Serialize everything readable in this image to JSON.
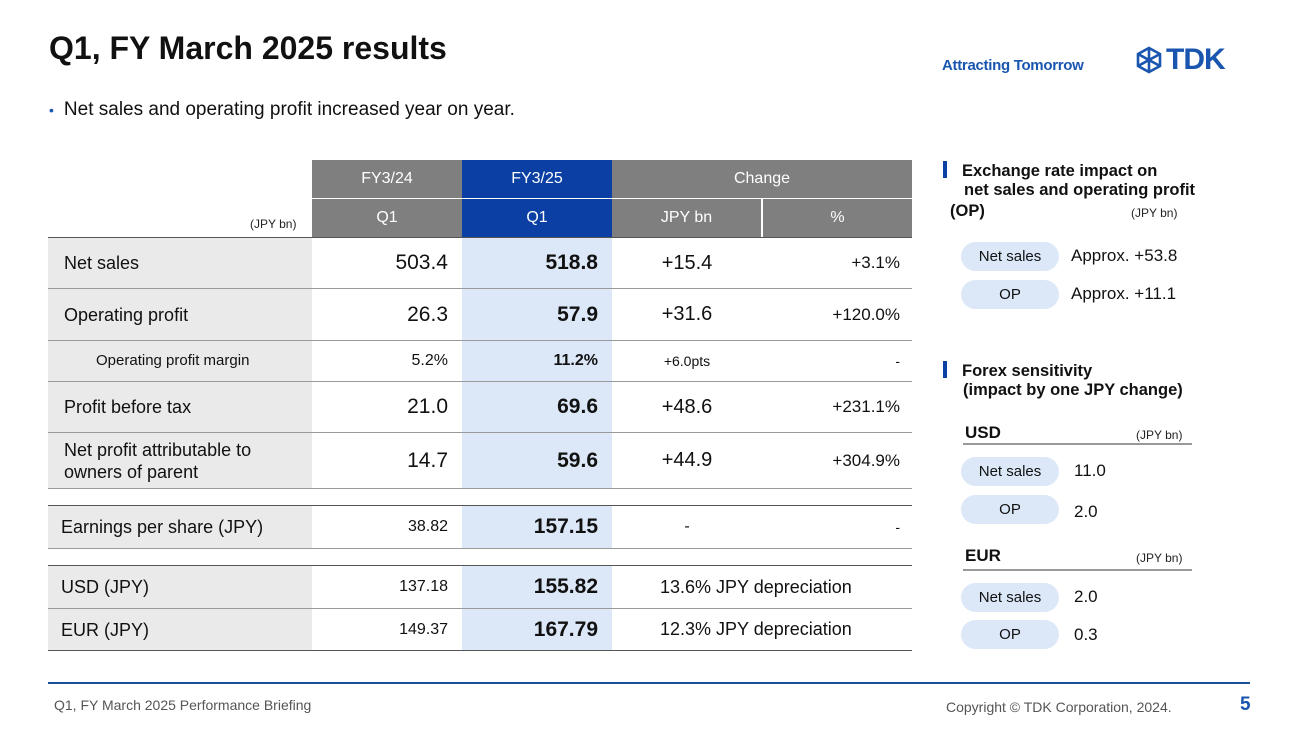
{
  "title": "Q1, FY March 2025 results",
  "brand": {
    "tagline": "Attracting Tomorrow",
    "logo_text": "TDK"
  },
  "bullet": "Net sales and operating profit increased year on year.",
  "table": {
    "unit": "(JPY bn)",
    "headers": {
      "fy24": "FY3/24",
      "fy25": "FY3/25",
      "change": "Change",
      "q1_a": "Q1",
      "q1_b": "Q1",
      "jpy_bn": "JPY bn",
      "pct": "%"
    },
    "rows": [
      {
        "label": "Net sales",
        "fy24": "503.4",
        "fy25": "518.8",
        "change": "+15.4",
        "pct": "+3.1%"
      },
      {
        "label": "Operating profit",
        "fy24": "26.3",
        "fy25": "57.9",
        "change": "+31.6",
        "pct": "+120.0%"
      },
      {
        "label": "Operating profit margin",
        "fy24": "5.2%",
        "fy25": "11.2%",
        "change": "+6.0pts",
        "pct": "-"
      },
      {
        "label": "Profit before tax",
        "fy24": "21.0",
        "fy25": "69.6",
        "change": "+48.6",
        "pct": "+231.1%"
      },
      {
        "label_line1": "Net profit attributable to",
        "label_line2": "owners of parent",
        "fy24": "14.7",
        "fy25": "59.6",
        "change": "+44.9",
        "pct": "+304.9%"
      },
      {
        "label": "Earnings per share (JPY)",
        "fy24": "38.82",
        "fy25": "157.15",
        "change": "-",
        "pct": "-"
      },
      {
        "label": "USD (JPY)",
        "fy24": "137.18",
        "fy25": "155.82",
        "change_note": "13.6% JPY depreciation"
      },
      {
        "label": "EUR (JPY)",
        "fy24": "149.37",
        "fy25": "167.79",
        "change_note": "12.3% JPY depreciation"
      }
    ]
  },
  "exchange_impact": {
    "heading_line1": "Exchange rate impact on",
    "heading_line2": "net sales and operating profit",
    "heading_line3": "(OP)",
    "unit": "(JPY bn)",
    "items": [
      {
        "label": "Net sales",
        "value": "Approx. +53.8"
      },
      {
        "label": "OP",
        "value": "Approx. +11.1"
      }
    ]
  },
  "forex_sensitivity": {
    "heading_line1": "Forex sensitivity",
    "heading_line2": "(impact by one JPY change)",
    "usd": {
      "currency": "USD",
      "unit": "(JPY bn)",
      "items": [
        {
          "label": "Net sales",
          "value": "11.0"
        },
        {
          "label": "OP",
          "value": "2.0"
        }
      ]
    },
    "eur": {
      "currency": "EUR",
      "unit": "(JPY bn)",
      "items": [
        {
          "label": "Net sales",
          "value": "2.0"
        },
        {
          "label": "OP",
          "value": "0.3"
        }
      ]
    }
  },
  "footer": {
    "left": "Q1, FY March 2025 Performance Briefing",
    "copyright": "Copyright © TDK Corporation, 2024.",
    "page": "5"
  },
  "colors": {
    "accent": "#0b3fa3",
    "brand": "#1a56b0",
    "header_gray": "#7f7f7f",
    "highlight": "#dce8f8",
    "label_bg": "#eaeaea"
  }
}
